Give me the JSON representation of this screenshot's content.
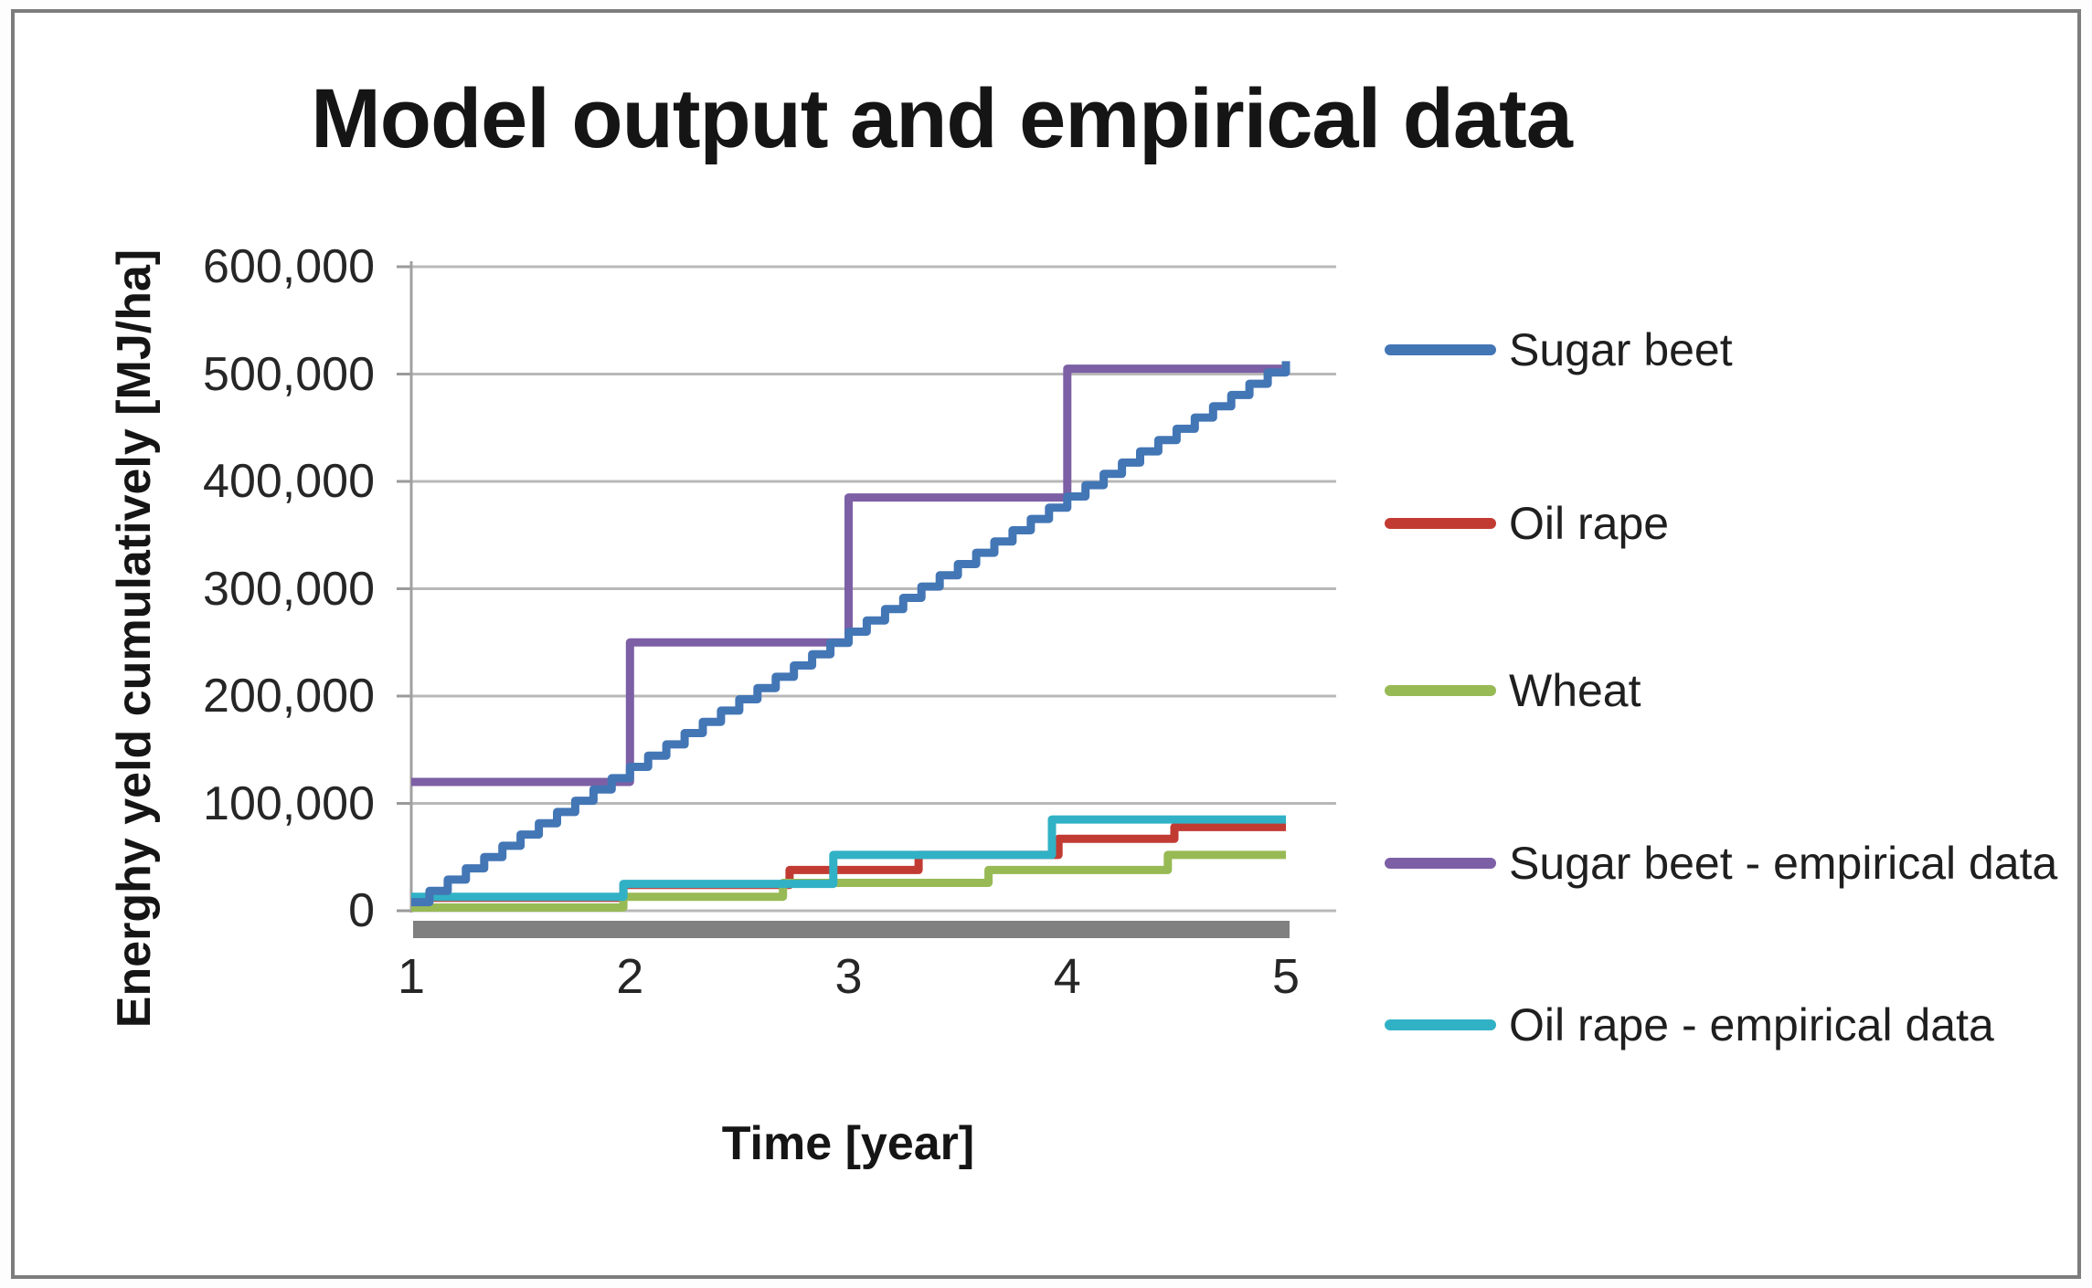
{
  "figure": {
    "title": "Model output and empirical data",
    "x_axis_title": "Time [year]",
    "y_axis_title": "Energhy yeld cumulatively [MJ/ha]"
  },
  "legend": {
    "position": "right",
    "items": [
      {
        "label": "Sugar beet",
        "color": "#4376B5"
      },
      {
        "label": "Oil rape",
        "color": "#C23B33"
      },
      {
        "label": "Wheat",
        "color": "#98BA55"
      },
      {
        "label": "Sugar beet - empirical data",
        "color": "#7D5FA5"
      },
      {
        "label": "Oil rape - empirical data",
        "color": "#31B1C5"
      }
    ]
  },
  "chart_data": {
    "type": "line",
    "title": "Model output and empirical data",
    "xlabel": "Time [year]",
    "ylabel": "Energhy yeld cumulatively [MJ/ha]",
    "xlim": [
      1,
      5
    ],
    "ylim": [
      0,
      600000
    ],
    "x_ticks": [
      1,
      2,
      3,
      4,
      5
    ],
    "y_ticks": [
      0,
      100000,
      200000,
      300000,
      400000,
      500000,
      600000
    ],
    "y_tick_labels": [
      "0",
      "100,000",
      "200,000",
      "300,000",
      "400,000",
      "500,000",
      "600,000"
    ],
    "grid": "horizontal",
    "legend_position": "right",
    "series": [
      {
        "name": "Sugar beet",
        "color": "#4376B5",
        "shape": "staircase",
        "description": "model output, small monthly harvest steps",
        "x_start": 1,
        "x_end": 5,
        "y_start": 8000,
        "y_end": 512000,
        "steps": 48
      },
      {
        "name": "Oil rape",
        "color": "#C23B33",
        "shape": "steps",
        "points": [
          [
            1,
            12000
          ],
          [
            1.97,
            12000
          ],
          [
            1.97,
            24000
          ],
          [
            2.73,
            24000
          ],
          [
            2.73,
            38000
          ],
          [
            3.32,
            38000
          ],
          [
            3.32,
            52000
          ],
          [
            3.96,
            52000
          ],
          [
            3.96,
            67000
          ],
          [
            4.49,
            67000
          ],
          [
            4.49,
            78000
          ],
          [
            5,
            78000
          ]
        ]
      },
      {
        "name": "Wheat",
        "color": "#98BA55",
        "shape": "steps",
        "points": [
          [
            1,
            3000
          ],
          [
            1.97,
            3000
          ],
          [
            1.97,
            13000
          ],
          [
            2.7,
            13000
          ],
          [
            2.7,
            26000
          ],
          [
            3.64,
            26000
          ],
          [
            3.64,
            38000
          ],
          [
            4.46,
            38000
          ],
          [
            4.46,
            52000
          ],
          [
            5,
            52000
          ]
        ]
      },
      {
        "name": "Sugar beet - empirical data",
        "color": "#7D5FA5",
        "shape": "steps",
        "points": [
          [
            1,
            120000
          ],
          [
            2,
            120000
          ],
          [
            2,
            250000
          ],
          [
            3,
            250000
          ],
          [
            3,
            385000
          ],
          [
            4,
            385000
          ],
          [
            4,
            505000
          ],
          [
            5,
            505000
          ]
        ]
      },
      {
        "name": "Oil rape - empirical data",
        "color": "#31B1C5",
        "shape": "steps",
        "points": [
          [
            1,
            13000
          ],
          [
            1.97,
            13000
          ],
          [
            1.97,
            25000
          ],
          [
            2.93,
            25000
          ],
          [
            2.93,
            52000
          ],
          [
            3.93,
            52000
          ],
          [
            3.93,
            85000
          ],
          [
            5,
            85000
          ]
        ]
      }
    ],
    "baseline_bar": {
      "y": 0,
      "from_x": 1,
      "to_x": 5,
      "color": "#808080"
    }
  }
}
